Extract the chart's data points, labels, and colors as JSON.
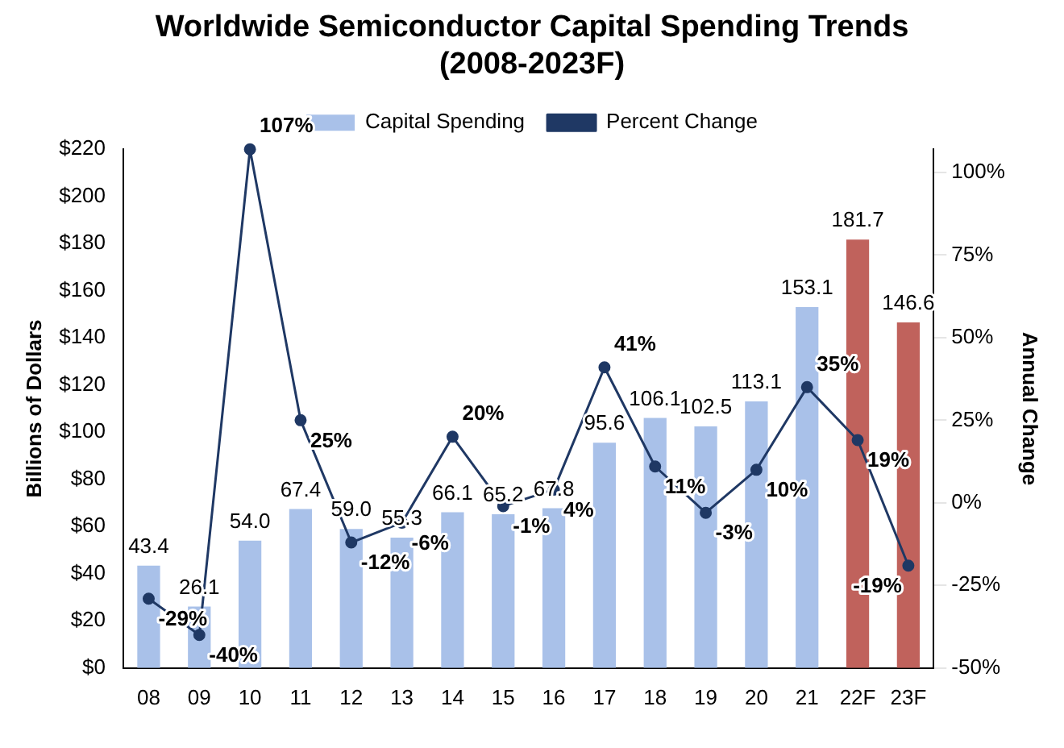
{
  "chart_data": {
    "type": "bar",
    "title": "Worldwide Semiconductor Capital Spending Trends\n(2008-2023F)",
    "ylabel": "Billions of Dollars",
    "y2label": "Annual Change",
    "categories": [
      "08",
      "09",
      "10",
      "11",
      "12",
      "13",
      "14",
      "15",
      "16",
      "17",
      "18",
      "19",
      "20",
      "21",
      "22F",
      "23F"
    ],
    "series": [
      {
        "name": "Capital Spending",
        "colors": [
          "#a9c1e9",
          "#a9c1e9",
          "#a9c1e9",
          "#a9c1e9",
          "#a9c1e9",
          "#a9c1e9",
          "#a9c1e9",
          "#a9c1e9",
          "#a9c1e9",
          "#a9c1e9",
          "#a9c1e9",
          "#a9c1e9",
          "#a9c1e9",
          "#a9c1e9",
          "#c0625c",
          "#c0625c"
        ],
        "values": [
          43.4,
          26.1,
          54.0,
          67.4,
          59.0,
          55.3,
          66.1,
          65.2,
          67.8,
          95.6,
          106.1,
          102.5,
          113.1,
          153.1,
          181.7,
          146.6
        ],
        "value_labels": [
          "43.4",
          "26.1",
          "54.0",
          "67.4",
          "59.0",
          "55.3",
          "66.1",
          "65.2",
          "67.8",
          "95.6",
          "106.1",
          "102.5",
          "113.1",
          "153.1",
          "181.7",
          "146.6"
        ]
      },
      {
        "name": "Percent Change",
        "type": "line",
        "axis": "y2",
        "color": "#1f3864",
        "marker": "circle",
        "values": [
          -29,
          -40,
          107,
          25,
          -12,
          -6,
          20,
          -1,
          4,
          41,
          11,
          -3,
          10,
          35,
          19,
          -19
        ],
        "value_labels": [
          "-29%",
          "-40%",
          "107%",
          "25%",
          "-12%",
          "-6%",
          "20%",
          "-1%",
          "4%",
          "41%",
          "11%",
          "-3%",
          "10%",
          "35%",
          "19%",
          "-19%"
        ]
      }
    ],
    "ylim": [
      0,
      220
    ],
    "yticks": [
      {
        "value": 0,
        "label": "$0"
      },
      {
        "value": 20,
        "label": "$20"
      },
      {
        "value": 40,
        "label": "$40"
      },
      {
        "value": 60,
        "label": "$60"
      },
      {
        "value": 80,
        "label": "$80"
      },
      {
        "value": 100,
        "label": "$100"
      },
      {
        "value": 120,
        "label": "$120"
      },
      {
        "value": 140,
        "label": "$140"
      },
      {
        "value": 160,
        "label": "$160"
      },
      {
        "value": 180,
        "label": "$180"
      },
      {
        "value": 200,
        "label": "$200"
      },
      {
        "value": 220,
        "label": "$220"
      }
    ],
    "y2lim": [
      -50,
      107
    ],
    "y2ticks": [
      {
        "value": -50,
        "label": "-50%"
      },
      {
        "value": -25,
        "label": "-25%"
      },
      {
        "value": 0,
        "label": "0%"
      },
      {
        "value": 25,
        "label": "25%"
      },
      {
        "value": 50,
        "label": "50%"
      },
      {
        "value": 75,
        "label": "75%"
      },
      {
        "value": 100,
        "label": "100%"
      }
    ],
    "legend": "top",
    "grid": false
  }
}
